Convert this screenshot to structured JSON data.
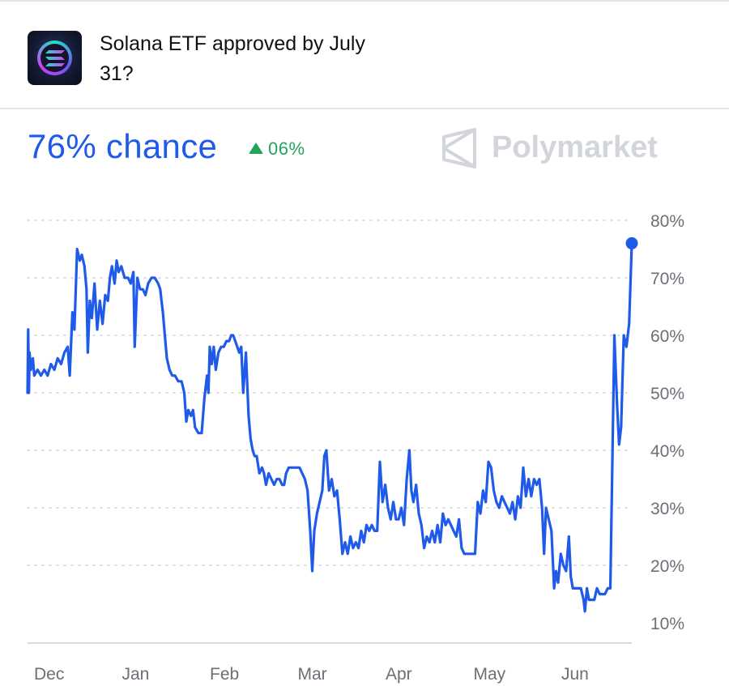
{
  "header": {
    "icon": "solana-logo-icon",
    "question_line1": "Solana ETF approved by July",
    "question_line2": "31?"
  },
  "summary": {
    "chance_text": "76% chance",
    "change_text": "06%",
    "change_direction": "up",
    "accent_color": "#1f5ae8",
    "change_color": "#22a55a"
  },
  "brand": {
    "name": "Polymarket",
    "icon": "polymarket-logo-icon"
  },
  "chart_data": {
    "type": "line",
    "title": "",
    "xlabel": "",
    "ylabel": "",
    "ylim": [
      10,
      80
    ],
    "y_ticks": [
      "80%",
      "70%",
      "60%",
      "50%",
      "40%",
      "30%",
      "20%",
      "10%"
    ],
    "x_ticks": [
      "Dec",
      "Jan",
      "Feb",
      "Mar",
      "Apr",
      "May",
      "Jun"
    ],
    "grid": true,
    "y_axis_position": "right",
    "line_color": "#1f5ae8",
    "end_marker": true,
    "series": [
      {
        "values": [
          [
            0.0,
            50
          ],
          [
            0.1,
            61
          ],
          [
            0.2,
            50
          ],
          [
            0.3,
            57
          ],
          [
            0.5,
            54
          ],
          [
            0.8,
            56
          ],
          [
            1.0,
            53
          ],
          [
            1.5,
            54
          ],
          [
            2.0,
            53
          ],
          [
            2.5,
            54
          ],
          [
            3.0,
            53
          ],
          [
            3.5,
            55
          ],
          [
            4.0,
            54
          ],
          [
            4.5,
            56
          ],
          [
            5.0,
            55
          ],
          [
            5.5,
            57
          ],
          [
            6.0,
            58
          ],
          [
            6.3,
            53
          ],
          [
            6.7,
            64
          ],
          [
            7.0,
            61
          ],
          [
            7.4,
            75
          ],
          [
            7.8,
            73
          ],
          [
            8.1,
            74
          ],
          [
            8.5,
            72
          ],
          [
            8.8,
            68
          ],
          [
            9.0,
            57
          ],
          [
            9.3,
            66
          ],
          [
            9.6,
            63
          ],
          [
            10.0,
            69
          ],
          [
            10.4,
            61
          ],
          [
            10.8,
            66
          ],
          [
            11.2,
            62
          ],
          [
            11.6,
            67
          ],
          [
            12.0,
            66
          ],
          [
            12.3,
            70
          ],
          [
            12.6,
            72
          ],
          [
            13.0,
            69
          ],
          [
            13.3,
            73
          ],
          [
            13.6,
            71
          ],
          [
            14.0,
            72
          ],
          [
            14.5,
            70
          ],
          [
            15.0,
            70
          ],
          [
            15.4,
            69
          ],
          [
            15.8,
            71
          ],
          [
            16.0,
            58
          ],
          [
            16.4,
            70
          ],
          [
            16.8,
            68
          ],
          [
            17.2,
            68
          ],
          [
            17.6,
            67
          ],
          [
            18.0,
            69
          ],
          [
            18.5,
            70
          ],
          [
            19.0,
            70
          ],
          [
            19.5,
            69
          ],
          [
            19.8,
            68
          ],
          [
            20.0,
            66
          ],
          [
            20.2,
            64
          ],
          [
            20.5,
            60
          ],
          [
            20.8,
            56
          ],
          [
            21.2,
            54
          ],
          [
            21.6,
            53
          ],
          [
            22.0,
            53
          ],
          [
            22.5,
            52
          ],
          [
            23.0,
            52
          ],
          [
            23.4,
            50
          ],
          [
            23.7,
            45
          ],
          [
            24.0,
            47
          ],
          [
            24.4,
            46
          ],
          [
            24.7,
            47
          ],
          [
            25.0,
            44
          ],
          [
            25.5,
            43
          ],
          [
            26.0,
            43
          ],
          [
            26.4,
            49
          ],
          [
            26.8,
            53
          ],
          [
            27.0,
            50
          ],
          [
            27.2,
            58
          ],
          [
            27.5,
            55
          ],
          [
            27.8,
            58
          ],
          [
            28.1,
            54
          ],
          [
            28.5,
            57
          ],
          [
            28.9,
            58
          ],
          [
            29.3,
            58
          ],
          [
            29.7,
            59
          ],
          [
            30.1,
            59
          ],
          [
            30.4,
            60
          ],
          [
            30.7,
            60
          ],
          [
            31.0,
            59
          ],
          [
            31.3,
            58
          ],
          [
            31.6,
            57
          ],
          [
            31.9,
            58
          ],
          [
            32.2,
            50
          ],
          [
            32.6,
            57
          ],
          [
            33.0,
            46
          ],
          [
            33.3,
            42
          ],
          [
            33.6,
            40
          ],
          [
            33.9,
            39
          ],
          [
            34.2,
            39
          ],
          [
            34.6,
            36
          ],
          [
            35.0,
            37
          ],
          [
            35.3,
            36
          ],
          [
            35.6,
            34
          ],
          [
            36.0,
            36
          ],
          [
            36.4,
            35
          ],
          [
            36.8,
            34
          ],
          [
            37.2,
            35
          ],
          [
            37.6,
            35
          ],
          [
            38.0,
            34
          ],
          [
            38.3,
            34
          ],
          [
            38.6,
            36
          ],
          [
            39.0,
            37
          ],
          [
            39.4,
            37
          ],
          [
            39.8,
            37
          ],
          [
            40.2,
            37
          ],
          [
            40.6,
            37
          ],
          [
            41.0,
            36
          ],
          [
            41.4,
            35
          ],
          [
            41.8,
            33
          ],
          [
            42.2,
            26
          ],
          [
            42.5,
            19
          ],
          [
            42.8,
            26
          ],
          [
            43.2,
            29
          ],
          [
            43.6,
            31
          ],
          [
            44.0,
            33
          ],
          [
            44.3,
            39
          ],
          [
            44.6,
            40
          ],
          [
            45.0,
            33
          ],
          [
            45.4,
            35
          ],
          [
            45.8,
            32
          ],
          [
            46.2,
            33
          ],
          [
            46.6,
            28
          ],
          [
            47.0,
            22
          ],
          [
            47.4,
            24
          ],
          [
            47.8,
            22
          ],
          [
            48.2,
            25
          ],
          [
            48.6,
            23
          ],
          [
            49.0,
            24
          ],
          [
            49.4,
            23
          ],
          [
            49.8,
            26
          ],
          [
            50.2,
            24
          ],
          [
            50.6,
            27
          ],
          [
            51.0,
            26
          ],
          [
            51.4,
            27
          ],
          [
            51.8,
            26
          ],
          [
            52.2,
            26
          ],
          [
            52.6,
            38
          ],
          [
            53.0,
            31
          ],
          [
            53.4,
            34
          ],
          [
            53.8,
            30
          ],
          [
            54.2,
            28
          ],
          [
            54.6,
            31
          ],
          [
            55.0,
            28
          ],
          [
            55.4,
            28
          ],
          [
            55.8,
            30
          ],
          [
            56.2,
            27
          ],
          [
            56.6,
            35
          ],
          [
            57.0,
            40
          ],
          [
            57.3,
            33
          ],
          [
            57.6,
            31
          ],
          [
            58.0,
            34
          ],
          [
            58.4,
            29
          ],
          [
            58.8,
            27
          ],
          [
            59.2,
            23
          ],
          [
            59.6,
            25
          ],
          [
            60.0,
            24
          ],
          [
            60.4,
            26
          ],
          [
            60.8,
            24
          ],
          [
            61.2,
            27
          ],
          [
            61.6,
            24
          ],
          [
            62.0,
            29
          ],
          [
            62.4,
            27
          ],
          [
            62.8,
            28
          ],
          [
            63.2,
            27
          ],
          [
            63.6,
            26
          ],
          [
            64.0,
            25
          ],
          [
            64.4,
            28
          ],
          [
            64.8,
            23
          ],
          [
            65.2,
            22
          ],
          [
            65.6,
            22
          ],
          [
            66.0,
            22
          ],
          [
            66.4,
            22
          ],
          [
            66.8,
            22
          ],
          [
            67.2,
            31
          ],
          [
            67.6,
            29
          ],
          [
            68.0,
            33
          ],
          [
            68.4,
            31
          ],
          [
            68.8,
            38
          ],
          [
            69.2,
            37
          ],
          [
            69.6,
            33
          ],
          [
            70.0,
            31
          ],
          [
            70.4,
            30
          ],
          [
            70.8,
            32
          ],
          [
            71.2,
            31
          ],
          [
            71.6,
            30
          ],
          [
            72.0,
            29
          ],
          [
            72.4,
            31
          ],
          [
            72.8,
            28
          ],
          [
            73.2,
            32
          ],
          [
            73.6,
            30
          ],
          [
            74.0,
            37
          ],
          [
            74.4,
            32
          ],
          [
            74.8,
            35
          ],
          [
            75.2,
            32
          ],
          [
            75.6,
            35
          ],
          [
            76.0,
            34
          ],
          [
            76.4,
            35
          ],
          [
            76.8,
            30
          ],
          [
            77.1,
            22
          ],
          [
            77.4,
            30
          ],
          [
            77.8,
            28
          ],
          [
            78.2,
            26
          ],
          [
            78.6,
            16
          ],
          [
            78.9,
            19
          ],
          [
            79.2,
            17
          ],
          [
            79.6,
            22
          ],
          [
            80.0,
            20
          ],
          [
            80.4,
            19
          ],
          [
            80.8,
            25
          ],
          [
            81.1,
            18
          ],
          [
            81.4,
            16
          ],
          [
            81.8,
            16
          ],
          [
            82.2,
            16
          ],
          [
            82.6,
            16
          ],
          [
            83.0,
            14
          ],
          [
            83.2,
            12
          ],
          [
            83.5,
            16
          ],
          [
            83.8,
            14
          ],
          [
            84.2,
            14
          ],
          [
            84.6,
            14
          ],
          [
            85.0,
            16
          ],
          [
            85.4,
            15
          ],
          [
            85.8,
            15
          ],
          [
            86.2,
            15
          ],
          [
            86.6,
            16
          ],
          [
            87.0,
            16
          ],
          [
            87.3,
            38
          ],
          [
            87.6,
            60
          ],
          [
            88.0,
            48
          ],
          [
            88.3,
            41
          ],
          [
            88.6,
            44
          ],
          [
            89.0,
            60
          ],
          [
            89.4,
            58
          ],
          [
            89.8,
            62
          ],
          [
            90.2,
            76
          ]
        ]
      }
    ]
  }
}
